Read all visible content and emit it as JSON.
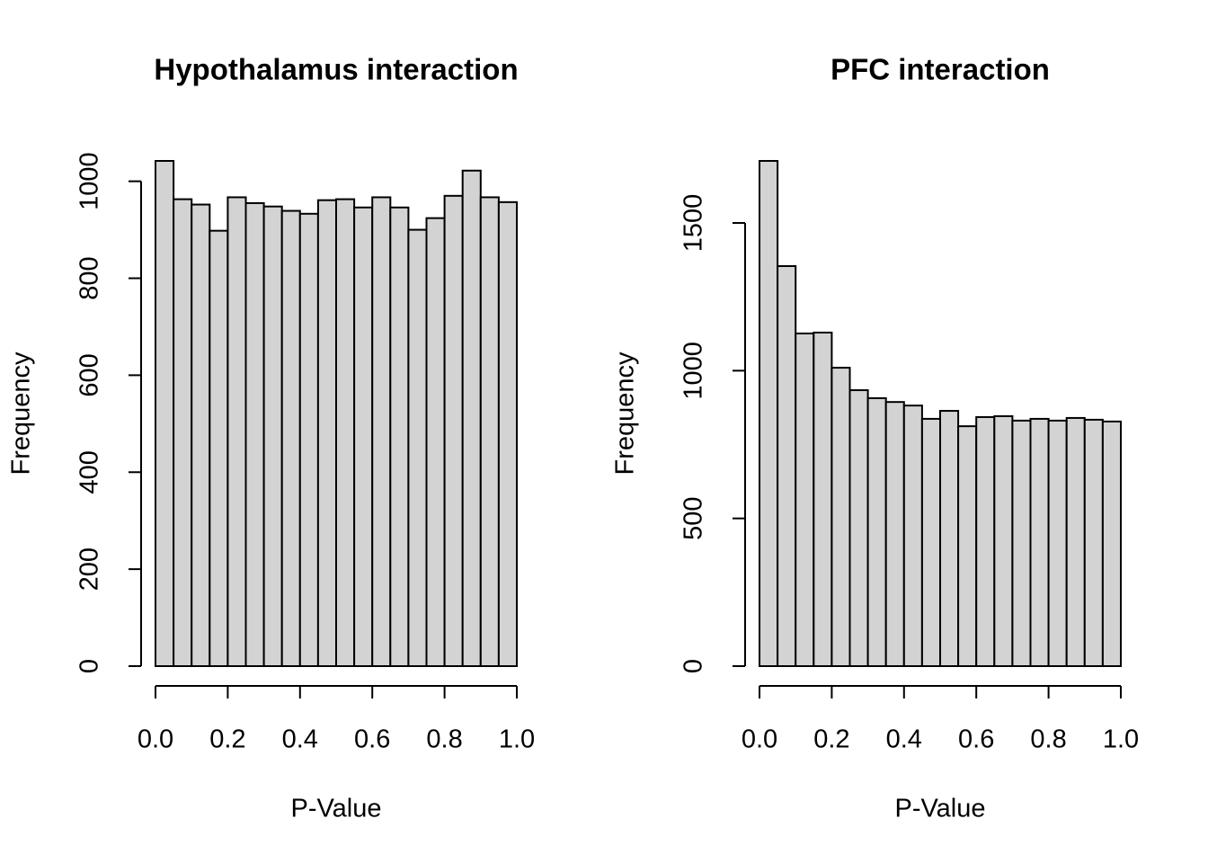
{
  "chart_data": [
    {
      "type": "histogram",
      "title": "Hypothalamus interaction",
      "xlabel": "P-Value",
      "ylabel": "Frequency",
      "color": "#d3d3d3",
      "bins": [
        0,
        0.05,
        0.1,
        0.15,
        0.2,
        0.25,
        0.3,
        0.35,
        0.4,
        0.45,
        0.5,
        0.55,
        0.6,
        0.65,
        0.7,
        0.75,
        0.8,
        0.85,
        0.9,
        0.95,
        1
      ],
      "values": [
        1042,
        963,
        952,
        898,
        967,
        955,
        948,
        939,
        933,
        961,
        963,
        946,
        967,
        946,
        900,
        924,
        970,
        1022,
        967,
        957
      ],
      "xlim": [
        0,
        1
      ],
      "xticks": [
        {
          "value": 0,
          "label": "0.0"
        },
        0.2,
        0.4,
        0.6,
        0.8,
        {
          "value": 1,
          "label": "1.0"
        }
      ],
      "ylim": [
        0,
        1042
      ],
      "yticks": [
        0,
        200,
        400,
        600,
        800,
        1000
      ]
    },
    {
      "type": "histogram",
      "title": "PFC interaction",
      "xlabel": "P-Value",
      "ylabel": "Frequency",
      "color": "#d3d3d3",
      "bins": [
        0,
        0.05,
        0.1,
        0.15,
        0.2,
        0.25,
        0.3,
        0.35,
        0.4,
        0.45,
        0.5,
        0.55,
        0.6,
        0.65,
        0.7,
        0.75,
        0.8,
        0.85,
        0.9,
        0.95,
        1
      ],
      "values": [
        1710,
        1354,
        1126,
        1129,
        1010,
        934,
        907,
        894,
        882,
        837,
        864,
        812,
        843,
        846,
        831,
        837,
        831,
        840,
        834,
        828
      ],
      "xlim": [
        0,
        1
      ],
      "xticks": [
        {
          "value": 0,
          "label": "0.0"
        },
        0.2,
        0.4,
        0.6,
        0.8,
        {
          "value": 1,
          "label": "1.0"
        }
      ],
      "ylim": [
        0,
        1710
      ],
      "yticks": [
        0,
        500,
        1000,
        1500
      ]
    }
  ]
}
